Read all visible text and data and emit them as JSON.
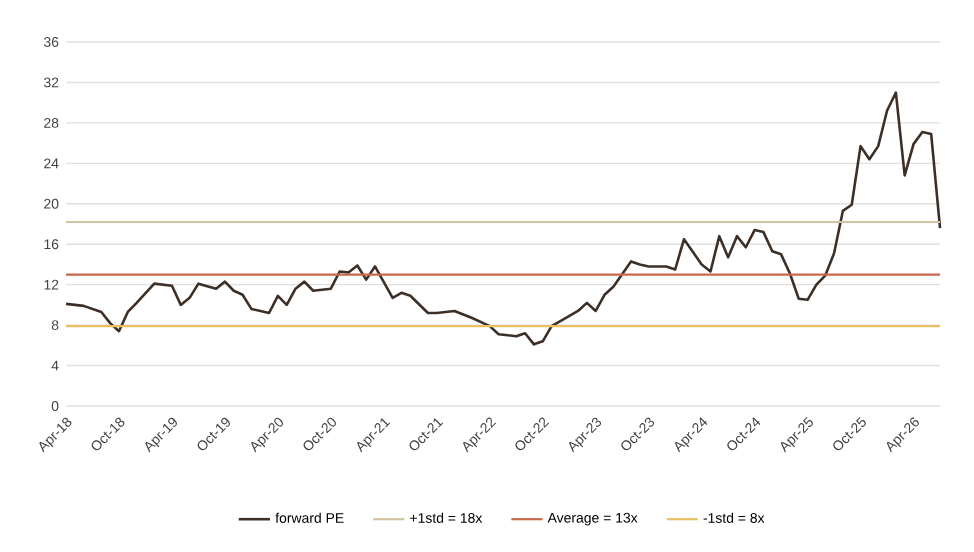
{
  "chart_data": {
    "type": "line",
    "x": [
      "2018-04",
      "2018-06",
      "2018-08",
      "2018-09",
      "2018-10",
      "2018-11",
      "2018-12",
      "2019-02",
      "2019-04",
      "2019-05",
      "2019-06",
      "2019-07",
      "2019-09",
      "2019-10",
      "2019-11",
      "2019-12",
      "2020-01",
      "2020-03",
      "2020-04",
      "2020-05",
      "2020-06",
      "2020-07",
      "2020-08",
      "2020-10",
      "2020-11",
      "2020-12",
      "2021-01",
      "2021-02",
      "2021-03",
      "2021-05",
      "2021-06",
      "2021-07",
      "2021-09",
      "2021-10",
      "2021-12",
      "2022-02",
      "2022-04",
      "2022-05",
      "2022-07",
      "2022-08",
      "2022-09",
      "2022-10",
      "2022-11",
      "2022-12",
      "2023-02",
      "2023-03",
      "2023-04",
      "2023-05",
      "2023-06",
      "2023-08",
      "2023-09",
      "2023-10",
      "2023-12",
      "2024-01",
      "2024-02",
      "2024-04",
      "2024-05",
      "2024-06",
      "2024-07",
      "2024-08",
      "2024-09",
      "2024-10",
      "2024-11",
      "2024-12",
      "2025-01",
      "2025-02",
      "2025-03",
      "2025-04",
      "2025-05",
      "2025-06",
      "2025-07",
      "2025-08",
      "2025-09",
      "2025-10",
      "2025-11",
      "2025-12",
      "2026-01",
      "2026-02",
      "2026-03",
      "2026-04",
      "2026-05",
      "2026-06",
      "2026-07"
    ],
    "series": [
      {
        "name": "forward PE",
        "color": "#3d2f26",
        "values": [
          10.1,
          9.9,
          9.3,
          8.2,
          7.4,
          9.3,
          10.2,
          12.1,
          11.9,
          10.0,
          10.7,
          12.1,
          11.6,
          12.3,
          11.4,
          11.0,
          9.6,
          9.2,
          10.9,
          10.0,
          11.6,
          12.3,
          11.4,
          11.6,
          13.3,
          13.2,
          13.9,
          12.5,
          13.8,
          10.7,
          11.2,
          10.9,
          9.2,
          9.2,
          9.4,
          8.7,
          7.9,
          7.1,
          6.9,
          7.2,
          6.1,
          6.4,
          7.9,
          8.4,
          9.4,
          10.2,
          9.4,
          11.0,
          11.8,
          14.3,
          14.0,
          13.8,
          13.8,
          13.5,
          16.5,
          14.0,
          13.3,
          16.8,
          14.7,
          16.8,
          15.7,
          17.4,
          17.2,
          15.3,
          15.0,
          13.1,
          10.6,
          10.5,
          12.0,
          12.9,
          15.1,
          19.3,
          19.9,
          25.7,
          24.4,
          25.7,
          29.2,
          31.0,
          22.8,
          25.9,
          27.1,
          26.9,
          17.6
        ]
      }
    ],
    "ref_lines": [
      {
        "axis": "y",
        "value": 18.2,
        "label": "+1std = 18x",
        "color": "#d2c3a3"
      },
      {
        "axis": "y",
        "value": 13.0,
        "label": "Average = 13x",
        "color": "#c8674a"
      },
      {
        "axis": "y",
        "value": 7.9,
        "label": "-1std = 8x",
        "color": "#e8c062"
      }
    ],
    "xlim": [
      "2018-04",
      "2026-07"
    ],
    "xticks": [
      {
        "value": "2018-04",
        "label": "Apr-18"
      },
      {
        "value": "2018-10",
        "label": "Oct-18"
      },
      {
        "value": "2019-04",
        "label": "Apr-19"
      },
      {
        "value": "2019-10",
        "label": "Oct-19"
      },
      {
        "value": "2020-04",
        "label": "Apr-20"
      },
      {
        "value": "2020-10",
        "label": "Oct-20"
      },
      {
        "value": "2021-04",
        "label": "Apr-21"
      },
      {
        "value": "2021-10",
        "label": "Oct-21"
      },
      {
        "value": "2022-04",
        "label": "Apr-22"
      },
      {
        "value": "2022-10",
        "label": "Oct-22"
      },
      {
        "value": "2023-04",
        "label": "Apr-23"
      },
      {
        "value": "2023-10",
        "label": "Oct-23"
      },
      {
        "value": "2024-04",
        "label": "Apr-24"
      },
      {
        "value": "2024-10",
        "label": "Oct-24"
      },
      {
        "value": "2025-04",
        "label": "Apr-25"
      },
      {
        "value": "2025-10",
        "label": "Oct-25"
      },
      {
        "value": "2026-04",
        "label": "Apr-26"
      }
    ],
    "ylim": [
      0,
      36
    ],
    "yticks": [
      0,
      4,
      8,
      12,
      16,
      20,
      24,
      28,
      32,
      36
    ],
    "grid": "y",
    "legend": "bottom"
  }
}
